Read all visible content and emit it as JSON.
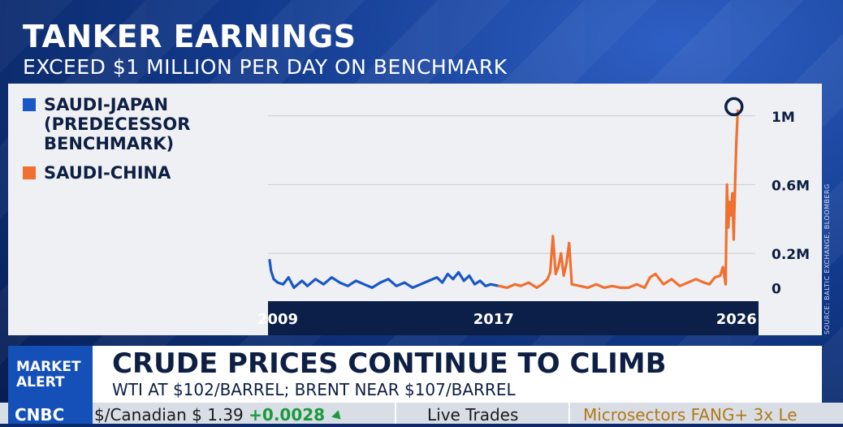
{
  "headline": "TANKER EARNINGS",
  "subheadline": "EXCEED $1 MILLION PER DAY ON BENCHMARK",
  "source": "SOURCE: BALTIC EXCHANGE, BLOOMBERG",
  "colors": {
    "saudi_japan": "#1957c6",
    "saudi_china": "#f07030",
    "axis_band": "#0c1f48",
    "grid": "#c9cbd2",
    "marker": "#0c1f48"
  },
  "chart_data": {
    "type": "line",
    "legend": [
      {
        "name": "SAUDI-JAPAN\n(PREDECESSOR\nBENCHMARK)",
        "color": "#1957c6"
      },
      {
        "name": "SAUDI-CHINA",
        "color": "#f07030"
      }
    ],
    "xlim": [
      2008.7,
      2026.7
    ],
    "ylim": [
      -0.05,
      1.15
    ],
    "x_ticks": [
      2009,
      2017,
      2026
    ],
    "x_tick_labels": [
      "2009",
      "2017",
      "2026"
    ],
    "y_ticks": [
      0,
      0.2,
      0.6,
      1.0
    ],
    "y_tick_labels": [
      "0",
      "0.2M",
      "0.6M",
      "1M"
    ],
    "series": [
      {
        "name": "SAUDI-JAPAN",
        "color": "#1957c6",
        "x": [
          2008.7,
          2008.75,
          2008.85,
          2009.0,
          2009.2,
          2009.4,
          2009.6,
          2009.9,
          2010.1,
          2010.4,
          2010.7,
          2011.0,
          2011.3,
          2011.6,
          2011.9,
          2012.2,
          2012.5,
          2012.8,
          2013.1,
          2013.4,
          2013.7,
          2014.0,
          2014.3,
          2014.6,
          2014.9,
          2015.1,
          2015.3,
          2015.5,
          2015.7,
          2015.9,
          2016.1,
          2016.3,
          2016.5,
          2016.7,
          2016.9,
          2017.2
        ],
        "y": [
          0.16,
          0.1,
          0.05,
          0.03,
          0.02,
          0.06,
          0.0,
          0.04,
          0.01,
          0.05,
          0.02,
          0.06,
          0.03,
          0.01,
          0.04,
          0.02,
          0.0,
          0.03,
          0.05,
          0.01,
          0.03,
          0.0,
          0.02,
          0.04,
          0.06,
          0.03,
          0.08,
          0.05,
          0.09,
          0.04,
          0.07,
          0.02,
          0.04,
          0.01,
          0.02,
          0.01
        ]
      },
      {
        "name": "SAUDI-CHINA",
        "color": "#f07030",
        "x": [
          2017.2,
          2017.5,
          2017.8,
          2018.0,
          2018.3,
          2018.6,
          2018.8,
          2019.0,
          2019.1,
          2019.2,
          2019.3,
          2019.4,
          2019.5,
          2019.6,
          2019.7,
          2019.8,
          2019.9,
          2020.2,
          2020.5,
          2020.8,
          2021.1,
          2021.4,
          2021.7,
          2022.0,
          2022.3,
          2022.6,
          2022.8,
          2023.0,
          2023.3,
          2023.6,
          2023.9,
          2024.2,
          2024.5,
          2024.8,
          2025.0,
          2025.2,
          2025.4,
          2025.5,
          2025.6,
          2025.65,
          2025.7,
          2025.75,
          2025.8,
          2025.85,
          2025.9,
          2025.95,
          2026.0,
          2026.05
        ],
        "y": [
          0.01,
          0.0,
          0.02,
          0.01,
          0.03,
          0.0,
          0.02,
          0.05,
          0.09,
          0.3,
          0.08,
          0.12,
          0.2,
          0.07,
          0.14,
          0.26,
          0.02,
          0.01,
          0.0,
          0.02,
          0.0,
          0.01,
          0.0,
          0.0,
          0.02,
          0.0,
          0.06,
          0.08,
          0.02,
          0.05,
          0.01,
          0.03,
          0.05,
          0.03,
          0.02,
          0.06,
          0.07,
          0.12,
          0.02,
          0.6,
          0.35,
          0.5,
          0.42,
          0.55,
          0.28,
          0.6,
          0.85,
          1.03
        ]
      }
    ],
    "annotations": [
      {
        "type": "circle-marker",
        "x": 2026.0,
        "y": 1.03
      }
    ]
  },
  "alert": {
    "tag": "MARKET\nALERT",
    "title": "CRUDE PRICES CONTINUE TO CLIMB",
    "subtitle": "WTI AT $102/BARREL; BRENT NEAR $107/BARREL"
  },
  "ticker": {
    "logo": "CNBC",
    "item1_label": "$/Canadian $ 1.39",
    "item1_change": "+0.0028",
    "item2": "Live Trades",
    "item3": "Microsectors FANG+ 3x Le"
  }
}
